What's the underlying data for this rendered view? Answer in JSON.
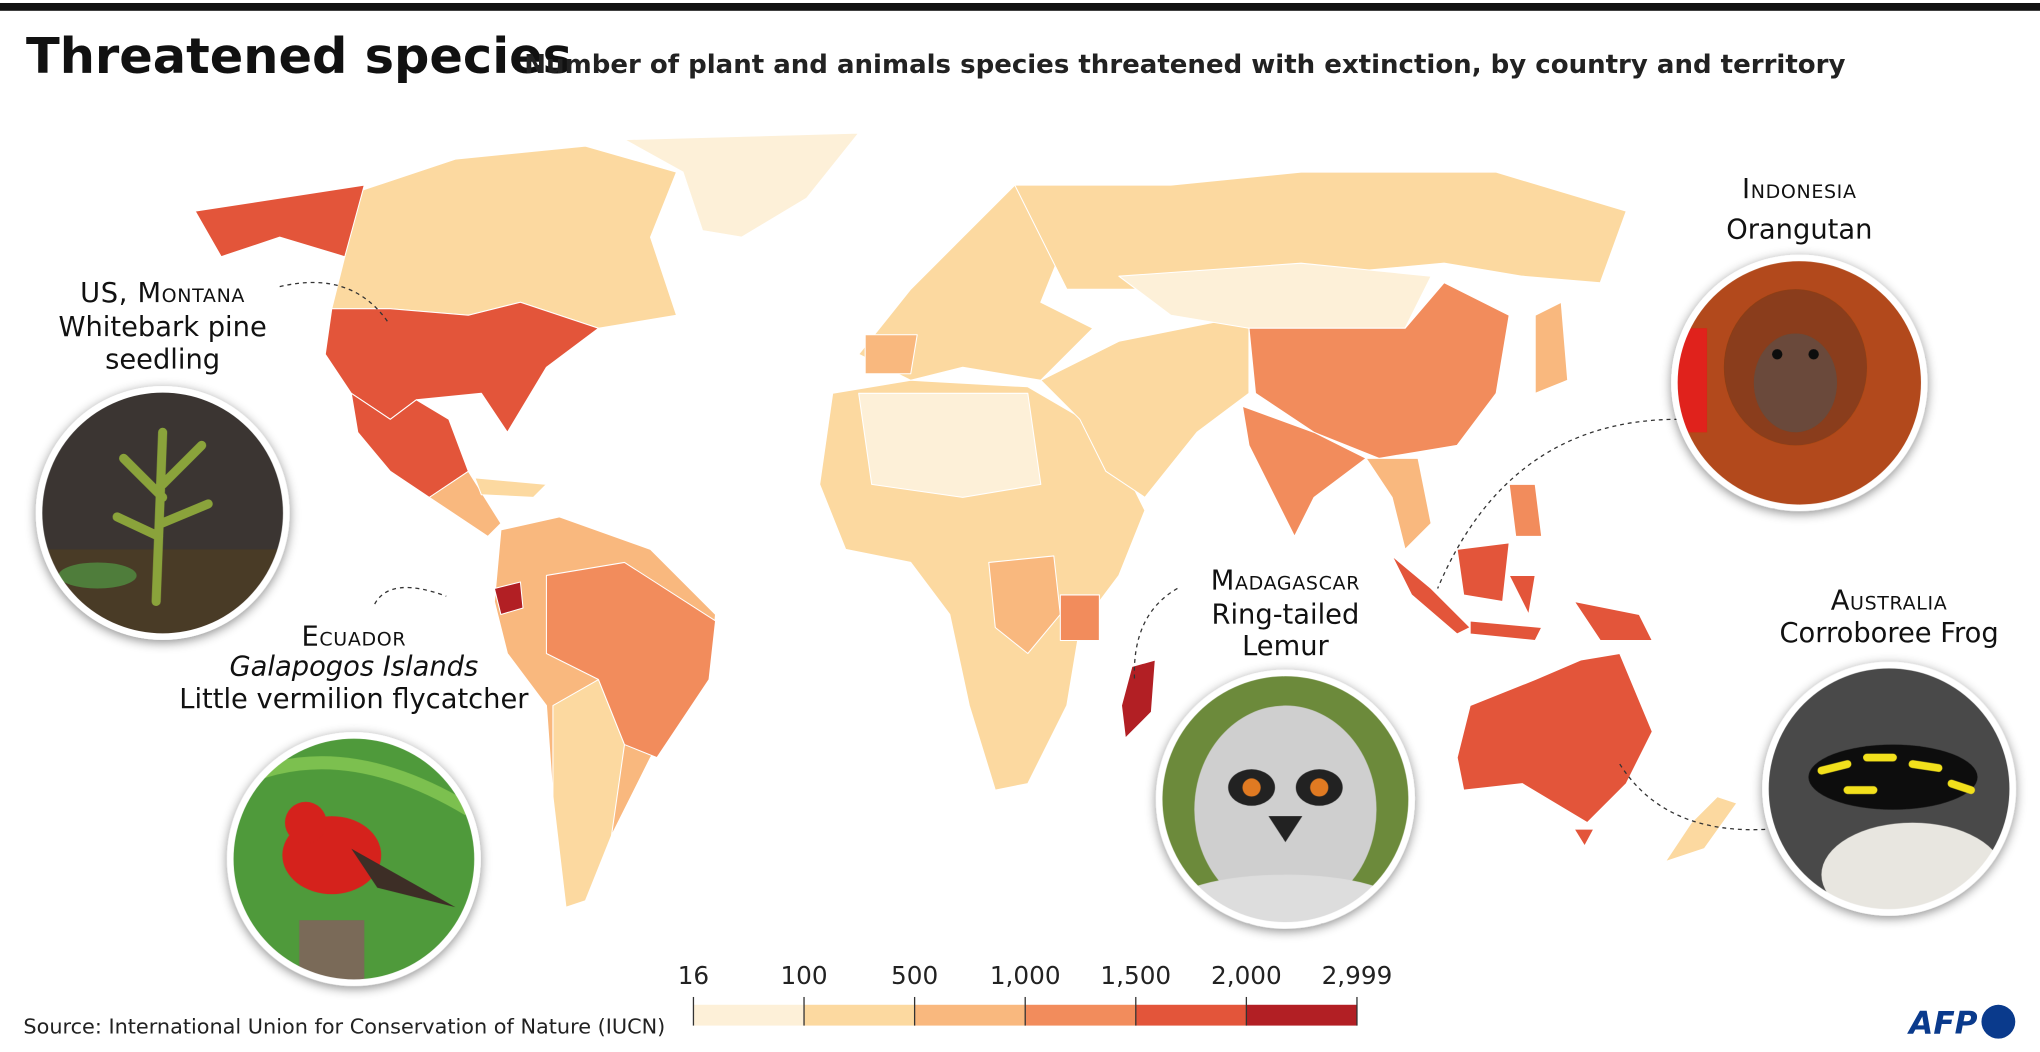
{
  "header": {
    "title": "Threatened species",
    "subtitle": "Number of plant and animals species threatened with extinction, by country and territory"
  },
  "callouts": {
    "us": {
      "region": "US, Montana",
      "species": [
        "Whitebark pine",
        "seedling"
      ]
    },
    "ecuador": {
      "region": "Ecuador",
      "place": "Galapogos Islands",
      "species": [
        "Little vermilion flycatcher"
      ]
    },
    "madagascar": {
      "region": "Madagascar",
      "species": [
        "Ring-tailed",
        "Lemur"
      ]
    },
    "indonesia": {
      "region": "Indonesia",
      "species": [
        "Orangutan"
      ]
    },
    "australia": {
      "region": "Australia",
      "species": [
        "Corroboree Frog"
      ]
    }
  },
  "legend": {
    "ticks": [
      16,
      100,
      500,
      {
        "value": 1000,
        "label": "1,000"
      },
      {
        "value": 1500,
        "label": "1,500"
      },
      {
        "value": 2000,
        "label": "2,000"
      },
      {
        "value": 2999,
        "label": "2,999"
      }
    ],
    "colors": [
      "#fdf0d8",
      "#fcd9a0",
      "#f9b87e",
      "#f28c5c",
      "#e3553a",
      "#b21f24"
    ]
  },
  "source": "Source: International Union for Conservation of Nature (IUCN)",
  "credit": "AFP"
}
